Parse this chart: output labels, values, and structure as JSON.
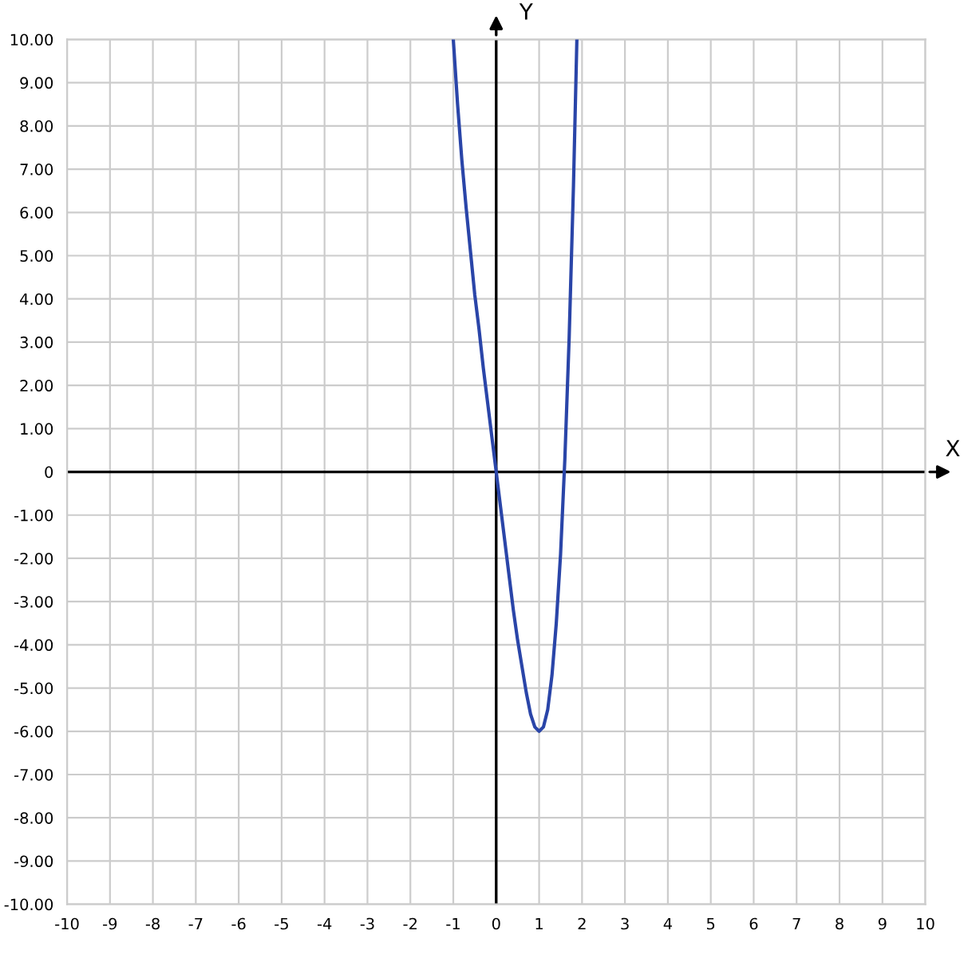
{
  "chart_data": {
    "type": "line",
    "xlabel": "X",
    "ylabel": "Y",
    "x": [
      -1.0,
      -0.9,
      -0.8,
      -0.7,
      -0.6,
      -0.5,
      -0.4,
      -0.3,
      -0.2,
      -0.1,
      0.0,
      0.1,
      0.2,
      0.3,
      0.4,
      0.5,
      0.6,
      0.7,
      0.8,
      0.9,
      1.0,
      1.1,
      1.2,
      1.3,
      1.4,
      1.5,
      1.6,
      1.7,
      1.8,
      1.88
    ],
    "series": [
      {
        "color": "#2a45a8",
        "values": [
          10.0,
          8.5,
          7.2,
          6.1,
          5.1,
          4.1,
          3.3,
          2.4,
          1.6,
          0.8,
          0.0,
          -0.8,
          -1.6,
          -2.4,
          -3.2,
          -3.9,
          -4.5,
          -5.1,
          -5.6,
          -5.9,
          -6.0,
          -5.9,
          -5.5,
          -4.7,
          -3.5,
          -1.9,
          0.3,
          3.1,
          6.6,
          10.0
        ]
      }
    ],
    "xlim": [
      -10,
      10
    ],
    "ylim": [
      -10,
      10
    ],
    "xticks": [
      -10,
      -9,
      -8,
      -7,
      -6,
      -5,
      -4,
      -3,
      -2,
      -1,
      0,
      1,
      2,
      3,
      4,
      5,
      6,
      7,
      8,
      9,
      10
    ],
    "yticks": [
      {
        "value": 10,
        "label": "10.00"
      },
      {
        "value": 9,
        "label": "9.00"
      },
      {
        "value": 8,
        "label": "8.00"
      },
      {
        "value": 7,
        "label": "7.00"
      },
      {
        "value": 6,
        "label": "6.00"
      },
      {
        "value": 5,
        "label": "5.00"
      },
      {
        "value": 4,
        "label": "4.00"
      },
      {
        "value": 3,
        "label": "3.00"
      },
      {
        "value": 2,
        "label": "2.00"
      },
      {
        "value": 1,
        "label": "1.00"
      },
      0,
      {
        "value": -1,
        "label": "-1.00"
      },
      {
        "value": -2,
        "label": "-2.00"
      },
      {
        "value": -3,
        "label": "-3.00"
      },
      {
        "value": -4,
        "label": "-4.00"
      },
      {
        "value": -5,
        "label": "-5.00"
      },
      {
        "value": -6,
        "label": "-6.00"
      },
      {
        "value": -7,
        "label": "-7.00"
      },
      {
        "value": -8,
        "label": "-8.00"
      },
      {
        "value": -9,
        "label": "-9.00"
      },
      {
        "value": -10,
        "label": "-10.00"
      }
    ],
    "grid": true,
    "legend": false,
    "marker": "none",
    "line_style": "solid"
  }
}
